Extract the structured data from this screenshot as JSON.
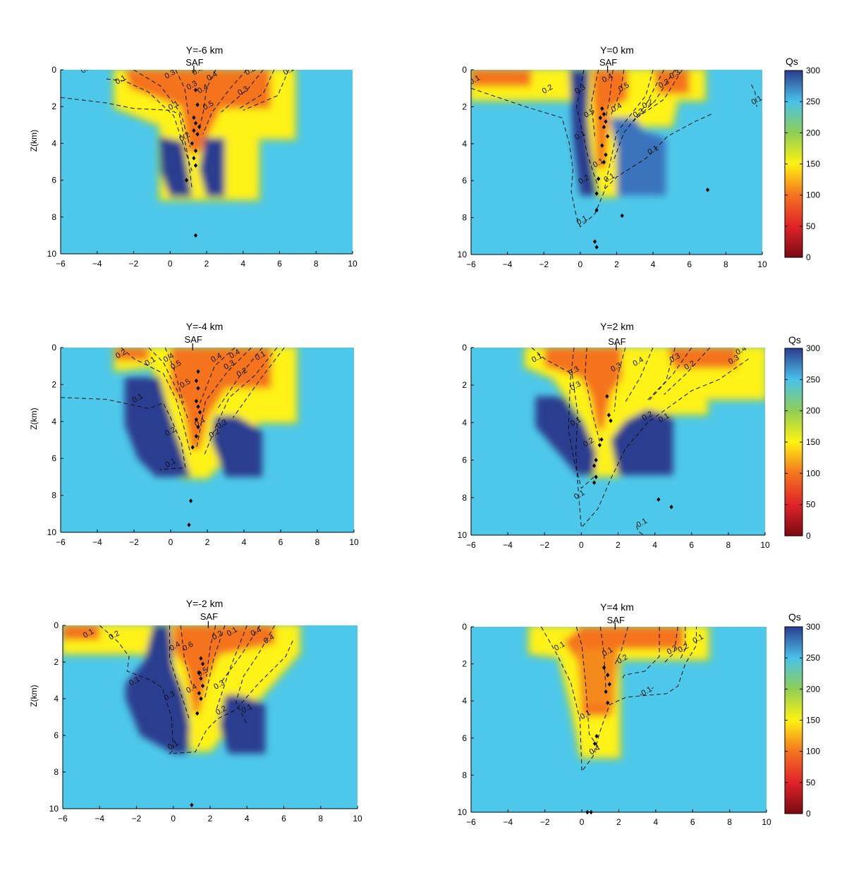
{
  "figure": {
    "colorbar_label": "Qs",
    "colorbar_ticks": [
      "0",
      "50",
      "100",
      "150",
      "200",
      "250",
      "300"
    ],
    "colorbar_colors": [
      "#7a0a12",
      "#e0242a",
      "#f4731f",
      "#fef212",
      "#8fce55",
      "#49c2ea",
      "#2b3d8f"
    ],
    "background_color": "#4ec8ea",
    "contour_label_text": [
      "0.1",
      "0.2",
      "0.3",
      "0.4",
      "0.5"
    ]
  },
  "chart_data": [
    {
      "type": "heatmap",
      "title": "Y=-6 km",
      "fault_label": "SAF",
      "ylabel": "Z(km)",
      "xlim": [
        -6,
        10
      ],
      "ylim": [
        10,
        0
      ],
      "xticks": [
        -6,
        -4,
        -2,
        0,
        2,
        4,
        6,
        8,
        10
      ],
      "yticks": [
        0,
        2,
        4,
        6,
        8,
        10
      ],
      "fault_x": 1.3,
      "events": [
        [
          1.4,
          1.1
        ],
        [
          1.5,
          1.9
        ],
        [
          1.3,
          2.6
        ],
        [
          1.4,
          2.9
        ],
        [
          1.6,
          3.1
        ],
        [
          1.3,
          3.3
        ],
        [
          1.5,
          3.5
        ],
        [
          1.2,
          4.0
        ],
        [
          1.4,
          4.4
        ],
        [
          1.3,
          4.8
        ],
        [
          1.4,
          5.2
        ],
        [
          0.9,
          6.0
        ],
        [
          1.4,
          9.0
        ]
      ]
    },
    {
      "type": "heatmap",
      "title": "Y=0 km",
      "fault_label": "SAF",
      "ylabel": "",
      "xlim": [
        -6,
        10
      ],
      "ylim": [
        10,
        0
      ],
      "xticks": [
        -6,
        -4,
        -2,
        0,
        2,
        4,
        6,
        8,
        10
      ],
      "yticks": [
        0,
        2,
        4,
        6,
        8,
        10
      ],
      "fault_x": 1.5,
      "events": [
        [
          1.2,
          2.1
        ],
        [
          1.3,
          2.4
        ],
        [
          1.1,
          2.6
        ],
        [
          1.4,
          2.8
        ],
        [
          1.3,
          3.1
        ],
        [
          1.5,
          3.6
        ],
        [
          1.2,
          4.1
        ],
        [
          1.4,
          4.6
        ],
        [
          1.3,
          5.0
        ],
        [
          1.0,
          5.9
        ],
        [
          0.9,
          6.7
        ],
        [
          0.9,
          7.6
        ],
        [
          2.3,
          7.9
        ],
        [
          7.0,
          6.5
        ],
        [
          0.8,
          9.3
        ],
        [
          0.9,
          9.6
        ]
      ]
    },
    {
      "type": "heatmap",
      "title": "Y=-4 km",
      "fault_label": "SAF",
      "ylabel": "Z(km)",
      "xlim": [
        -6,
        10
      ],
      "ylim": [
        10,
        0
      ],
      "xticks": [
        -6,
        -4,
        -2,
        0,
        2,
        4,
        6,
        8,
        10
      ],
      "yticks": [
        0,
        2,
        4,
        6,
        8,
        10
      ],
      "fault_x": 1.2,
      "events": [
        [
          1.5,
          1.3
        ],
        [
          1.4,
          1.8
        ],
        [
          1.5,
          2.2
        ],
        [
          1.4,
          2.9
        ],
        [
          1.5,
          3.2
        ],
        [
          1.6,
          3.5
        ],
        [
          1.4,
          3.9
        ],
        [
          1.5,
          4.3
        ],
        [
          1.4,
          4.8
        ],
        [
          1.2,
          5.4
        ],
        [
          1.1,
          8.3
        ],
        [
          1.0,
          9.6
        ]
      ]
    },
    {
      "type": "heatmap",
      "title": "Y=2 km",
      "fault_label": "SAF",
      "ylabel": "",
      "xlim": [
        -6,
        10
      ],
      "ylim": [
        10,
        0
      ],
      "xticks": [
        -6,
        -4,
        -2,
        0,
        2,
        4,
        6,
        8,
        10
      ],
      "yticks": [
        0,
        2,
        4,
        6,
        8,
        10
      ],
      "fault_x": 1.9,
      "events": [
        [
          1.4,
          2.6
        ],
        [
          1.5,
          3.6
        ],
        [
          1.6,
          3.9
        ],
        [
          1.1,
          4.9
        ],
        [
          1.0,
          5.2
        ],
        [
          0.8,
          6.0
        ],
        [
          0.7,
          6.3
        ],
        [
          0.8,
          6.9
        ],
        [
          0.7,
          7.2
        ],
        [
          4.2,
          8.1
        ],
        [
          4.9,
          8.5
        ]
      ]
    },
    {
      "type": "heatmap",
      "title": "Y=-2 km",
      "fault_label": "SAF",
      "ylabel": "Z(km)",
      "xlim": [
        -6,
        10
      ],
      "ylim": [
        10,
        0
      ],
      "xticks": [
        -6,
        -4,
        -2,
        0,
        2,
        4,
        6,
        8,
        10
      ],
      "yticks": [
        0,
        2,
        4,
        6,
        8,
        10
      ],
      "fault_x": 1.9,
      "events": [
        [
          1.5,
          1.8
        ],
        [
          1.6,
          2.1
        ],
        [
          1.4,
          2.6
        ],
        [
          1.5,
          2.9
        ],
        [
          1.6,
          3.3
        ],
        [
          1.4,
          3.7
        ],
        [
          1.5,
          4.0
        ],
        [
          1.3,
          4.8
        ],
        [
          1.0,
          9.8
        ]
      ]
    },
    {
      "type": "heatmap",
      "title": "Y=4 km",
      "fault_label": "SAF",
      "ylabel": "",
      "xlim": [
        -6,
        10
      ],
      "ylim": [
        10,
        0
      ],
      "xticks": [
        -6,
        -4,
        -2,
        0,
        2,
        4,
        6,
        8,
        10
      ],
      "yticks": [
        0,
        2,
        4,
        6,
        8,
        10
      ],
      "fault_x": 1.8,
      "events": [
        [
          1.2,
          2.2
        ],
        [
          1.4,
          2.6
        ],
        [
          1.5,
          3.1
        ],
        [
          1.3,
          3.5
        ],
        [
          1.4,
          4.1
        ],
        [
          0.8,
          5.9
        ],
        [
          0.7,
          6.3
        ],
        [
          0.3,
          10.0
        ],
        [
          0.5,
          10.0
        ]
      ]
    }
  ]
}
